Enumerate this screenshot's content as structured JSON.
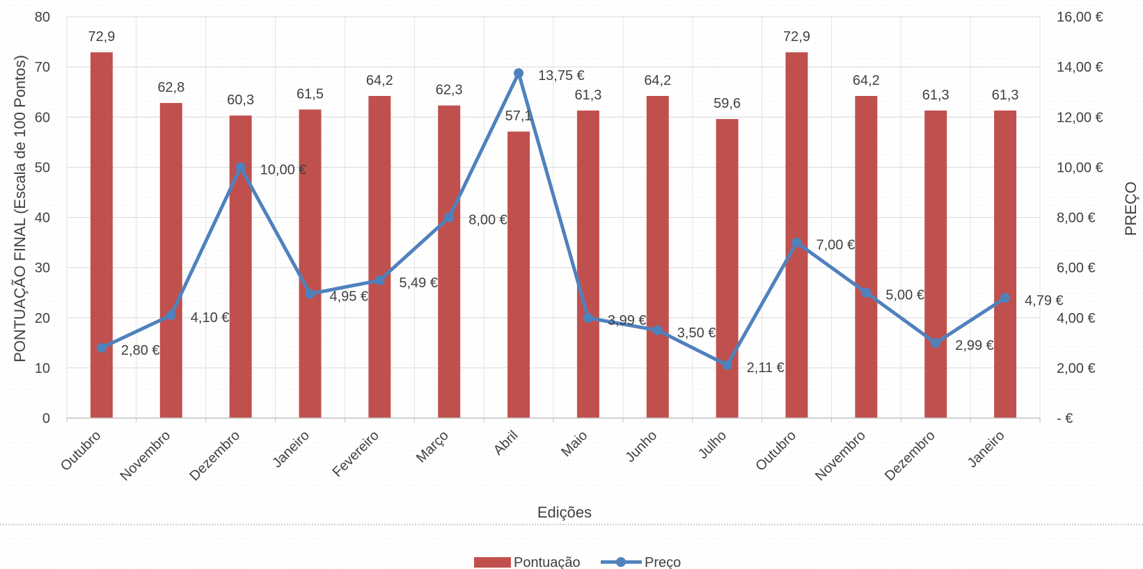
{
  "chart_data": {
    "type": "bar",
    "categories": [
      "Outubro",
      "Novembro",
      "Dezembro",
      "Janeiro",
      "Fevereiro",
      "Março",
      "Abril",
      "Maio",
      "Junho",
      "Julho",
      "Outubro",
      "Novembro",
      "Dezembro",
      "Janeiro"
    ],
    "series": [
      {
        "name": "Pontuação",
        "type": "bar",
        "axis": "left",
        "color": "#c0504d",
        "values": [
          72.9,
          62.8,
          60.3,
          61.5,
          64.2,
          62.3,
          57.1,
          61.3,
          64.2,
          59.6,
          72.9,
          64.2,
          61.3,
          61.3
        ],
        "labels": [
          "72,9",
          "62,8",
          "60,3",
          "61,5",
          "64,2",
          "62,3",
          "57,1",
          "61,3",
          "64,2",
          "59,6",
          "72,9",
          "64,2",
          "61,3",
          "61,3"
        ]
      },
      {
        "name": "Preço",
        "type": "line",
        "axis": "right",
        "color": "#4f81bd",
        "values": [
          2.8,
          4.1,
          10.0,
          4.95,
          5.49,
          8.0,
          13.75,
          3.99,
          3.5,
          2.11,
          7.0,
          5.0,
          2.99,
          4.79
        ],
        "labels": [
          "2,80 €",
          "4,10 €",
          "10,00 €",
          "4,95 €",
          "5,49 €",
          "8,00 €",
          "13,75 €",
          "3,99 €",
          "3,50 €",
          "2,11 €",
          "7,00 €",
          "5,00 €",
          "2,99 €",
          "4,79 €"
        ]
      }
    ],
    "xlabel": "Edições",
    "ylabel": "PONTUAÇÃO FINAL (Escala de 100 Pontos)",
    "y2label": "PREÇO",
    "ylim": [
      0,
      80
    ],
    "y2lim": [
      0,
      16
    ],
    "yticks": [
      "0",
      "10",
      "20",
      "30",
      "40",
      "50",
      "60",
      "70",
      "80"
    ],
    "y2ticks": [
      "-   €",
      "2,00 €",
      "4,00 €",
      "6,00 €",
      "8,00 €",
      "10,00 €",
      "12,00 €",
      "14,00 €",
      "16,00 €"
    ],
    "grid": true,
    "legend": "bottom"
  }
}
